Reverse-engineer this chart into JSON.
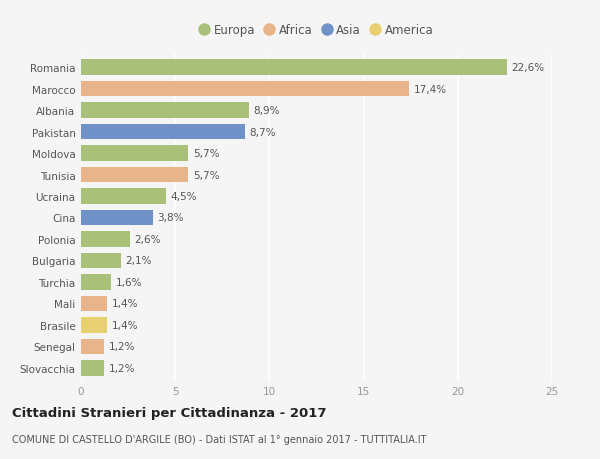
{
  "countries": [
    "Romania",
    "Marocco",
    "Albania",
    "Pakistan",
    "Moldova",
    "Tunisia",
    "Ucraina",
    "Cina",
    "Polonia",
    "Bulgaria",
    "Turchia",
    "Mali",
    "Brasile",
    "Senegal",
    "Slovacchia"
  ],
  "values": [
    22.6,
    17.4,
    8.9,
    8.7,
    5.7,
    5.7,
    4.5,
    3.8,
    2.6,
    2.1,
    1.6,
    1.4,
    1.4,
    1.2,
    1.2
  ],
  "labels": [
    "22,6%",
    "17,4%",
    "8,9%",
    "8,7%",
    "5,7%",
    "5,7%",
    "4,5%",
    "3,8%",
    "2,6%",
    "2,1%",
    "1,6%",
    "1,4%",
    "1,4%",
    "1,2%",
    "1,2%"
  ],
  "continents": [
    "Europa",
    "Africa",
    "Europa",
    "Asia",
    "Europa",
    "Africa",
    "Europa",
    "Asia",
    "Europa",
    "Europa",
    "Europa",
    "Africa",
    "America",
    "Africa",
    "Europa"
  ],
  "colors": {
    "Europa": "#a8c07a",
    "Africa": "#e8b48a",
    "Asia": "#7090c8",
    "America": "#e8d070"
  },
  "legend_order": [
    "Europa",
    "Africa",
    "Asia",
    "America"
  ],
  "xlim": [
    0,
    25
  ],
  "xticks": [
    0,
    5,
    10,
    15,
    20,
    25
  ],
  "title": "Cittadini Stranieri per Cittadinanza - 2017",
  "subtitle": "COMUNE DI CASTELLO D'ARGILE (BO) - Dati ISTAT al 1° gennaio 2017 - TUTTITALIA.IT",
  "background_color": "#f5f5f5",
  "grid_color": "#ffffff",
  "bar_height": 0.72,
  "label_fontsize": 7.5,
  "tick_fontsize": 7.5,
  "title_fontsize": 9.5,
  "subtitle_fontsize": 7.0
}
